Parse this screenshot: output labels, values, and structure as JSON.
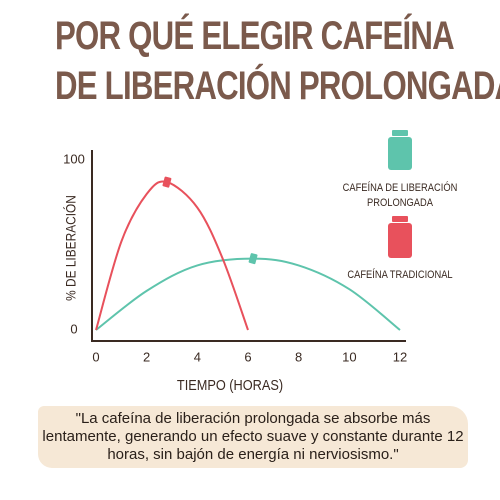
{
  "chart_data": {
    "type": "line",
    "title": [
      "POR QUÉ ELEGIR CAFEÍNA",
      "DE LIBERACIÓN PROLONGADA"
    ],
    "xlabel": "TIEMPO (HORAS)",
    "ylabel": "% DE LIBERACIÓN",
    "xlim": [
      0,
      12
    ],
    "xticks": [
      0,
      2,
      4,
      6,
      8,
      10,
      12
    ],
    "ylim": [
      0,
      100
    ],
    "yticks": [
      0,
      100
    ],
    "series": [
      {
        "name": "CAFEÍNA DE LIBERACIÓN PROLONGADA",
        "color": "#5ec4ac",
        "x": [
          0,
          2,
          4,
          6.2,
          8,
          10,
          12
        ],
        "values": [
          0,
          23,
          38,
          42,
          38,
          24,
          0
        ]
      },
      {
        "name": "CAFEÍNA TRADICIONAL",
        "color": "#e8515c",
        "x": [
          0,
          1,
          2,
          2.8,
          4,
          5,
          6
        ],
        "values": [
          0,
          52,
          80,
          87,
          72,
          42,
          0
        ]
      }
    ],
    "note": "\"La cafeína de liberación prolongada se absorbe más lentamente, generando un efecto suave y constante durante 12 horas, sin bajón de energía ni nerviosismo.\""
  }
}
